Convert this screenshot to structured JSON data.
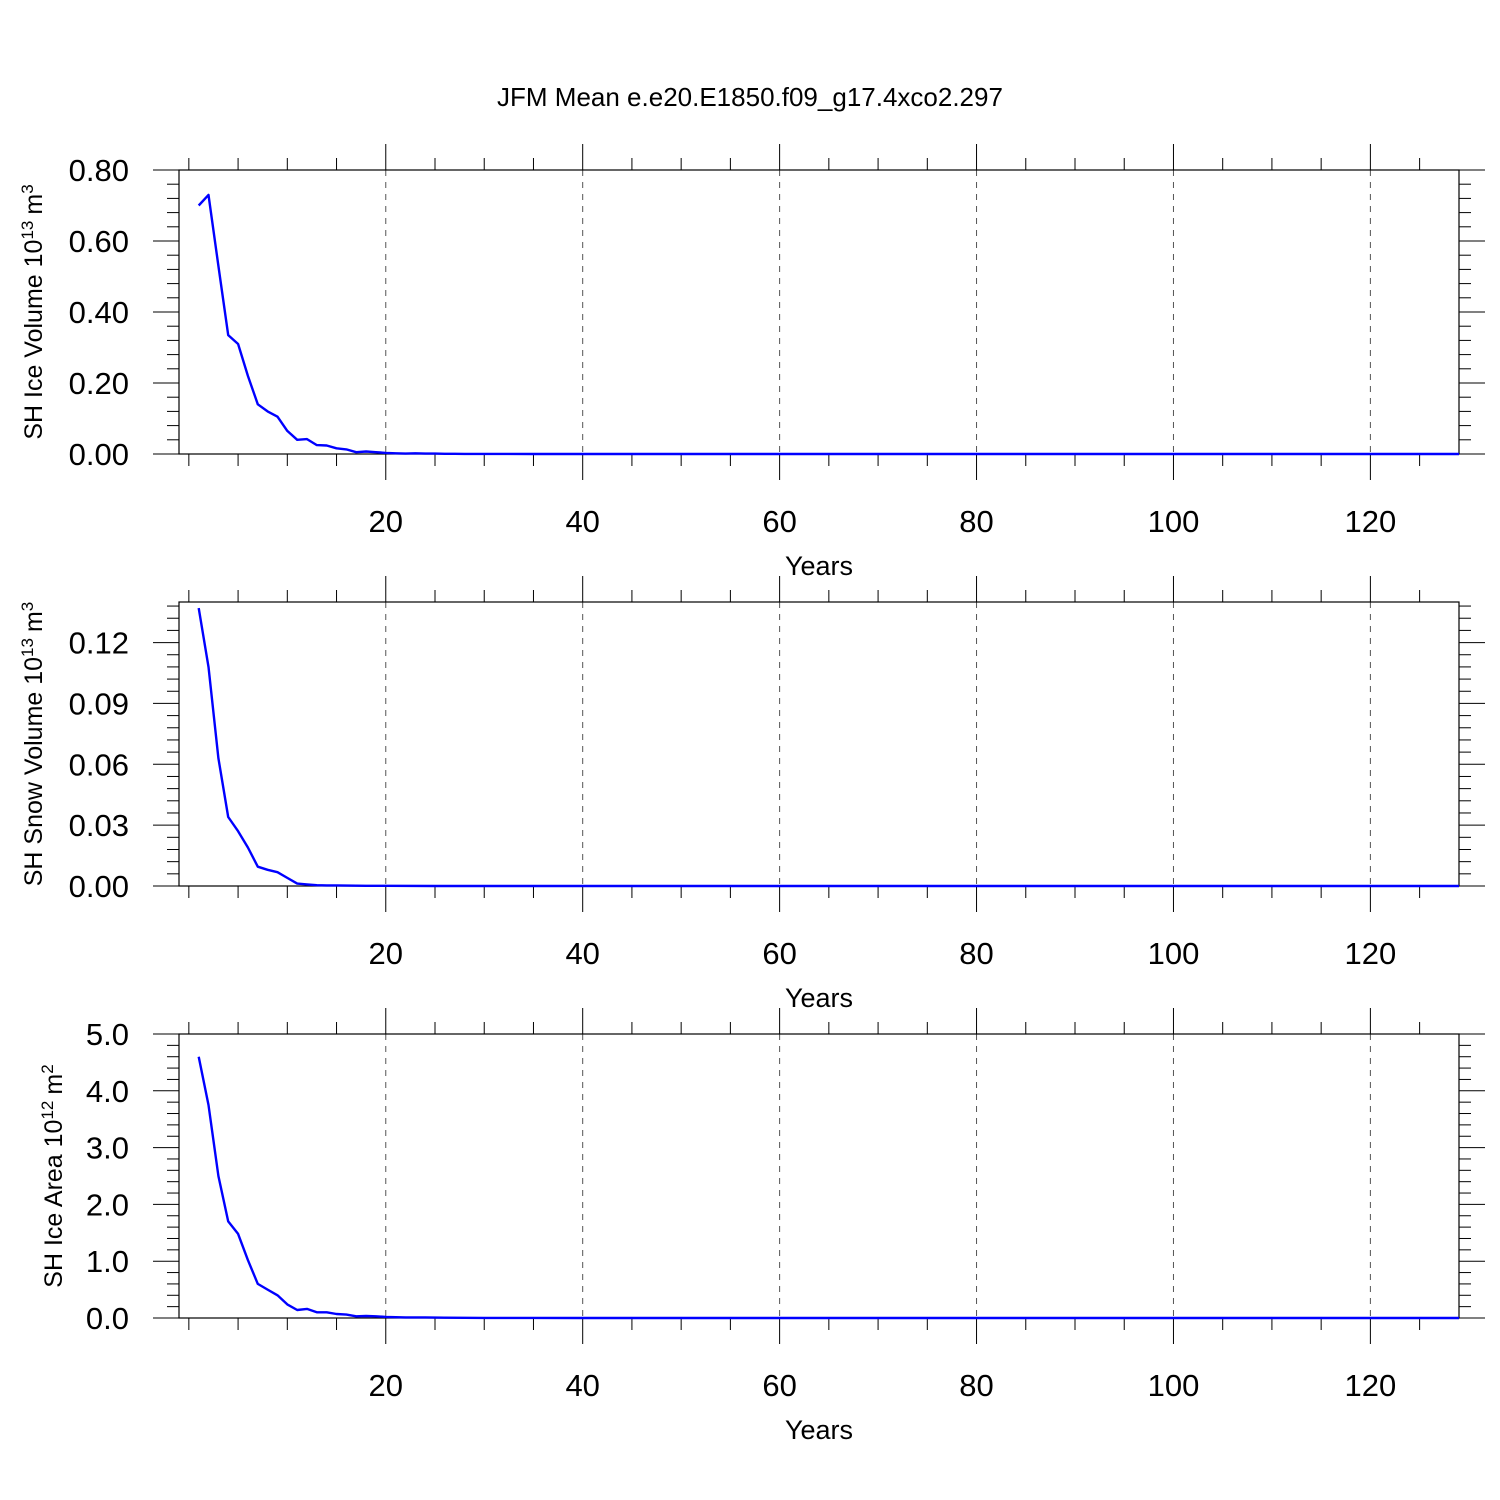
{
  "figure": {
    "title": "JFM Mean e.e20.E1850.f09_g17.4xco2.297"
  },
  "chart_data": [
    {
      "type": "line",
      "ylabel": "SH Ice Volume",
      "yunit": {
        "base": "10",
        "exp": "13",
        "unit": "m",
        "unit_exp": "3"
      },
      "xlabel": "Years",
      "xlim": [
        -1,
        129
      ],
      "ylim": [
        0,
        0.8
      ],
      "xticks": [
        20,
        40,
        60,
        80,
        100,
        120
      ],
      "xtick_labels": [
        "20",
        "40",
        "60",
        "80",
        "100",
        "120"
      ],
      "yticks": [
        0,
        0.2,
        0.4,
        0.6,
        0.8
      ],
      "ytick_labels": [
        "0.00",
        "0.20",
        "0.40",
        "0.60",
        "0.80"
      ],
      "grid": "vertical dashed",
      "series": [
        {
          "color": "#0000ff",
          "x": [
            1,
            2,
            3,
            4,
            5,
            6,
            7,
            8,
            9,
            10,
            11,
            12,
            13,
            14,
            15,
            16,
            17,
            18,
            19,
            20,
            21,
            22,
            23,
            24,
            25,
            26,
            27,
            28,
            30,
            35,
            40,
            50,
            60,
            80,
            100,
            120,
            129
          ],
          "y": [
            0.7,
            0.73,
            0.53,
            0.335,
            0.31,
            0.22,
            0.14,
            0.12,
            0.105,
            0.065,
            0.04,
            0.042,
            0.025,
            0.024,
            0.016,
            0.013,
            0.005,
            0.007,
            0.005,
            0.003,
            0.002,
            0.001,
            0.002,
            0.001,
            0.001,
            0.0005,
            0.0005,
            0.0003,
            0.0002,
            0.0001,
            0,
            0,
            0,
            0,
            0,
            0,
            0
          ]
        }
      ]
    },
    {
      "type": "line",
      "ylabel": "SH Snow Volume",
      "yunit": {
        "base": "10",
        "exp": "13",
        "unit": "m",
        "unit_exp": "3"
      },
      "xlabel": "Years",
      "xlim": [
        -1,
        129
      ],
      "ylim": [
        0,
        0.14
      ],
      "xticks": [
        20,
        40,
        60,
        80,
        100,
        120
      ],
      "xtick_labels": [
        "20",
        "40",
        "60",
        "80",
        "100",
        "120"
      ],
      "yticks": [
        0,
        0.03,
        0.06,
        0.09,
        0.12
      ],
      "ytick_labels": [
        "0.00",
        "0.03",
        "0.06",
        "0.09",
        "0.12"
      ],
      "grid": "vertical dashed",
      "series": [
        {
          "color": "#0000ff",
          "x": [
            1,
            2,
            3,
            4,
            5,
            6,
            7,
            8,
            9,
            10,
            11,
            12,
            13,
            14,
            15,
            16,
            18,
            20,
            25,
            30,
            40,
            60,
            80,
            100,
            120,
            129
          ],
          "y": [
            0.137,
            0.108,
            0.063,
            0.034,
            0.027,
            0.019,
            0.0095,
            0.008,
            0.0068,
            0.004,
            0.0012,
            0.0008,
            0.0004,
            0.0003,
            0.0003,
            0.0002,
            0.0001,
            0.0001,
            0,
            0,
            0,
            0,
            0,
            0,
            0,
            0
          ]
        }
      ]
    },
    {
      "type": "line",
      "ylabel": "SH Ice Area",
      "yunit": {
        "base": "10",
        "exp": "12",
        "unit": "m",
        "unit_exp": "2"
      },
      "xlabel": "Years",
      "xlim": [
        -1,
        129
      ],
      "ylim": [
        0,
        5.0
      ],
      "xticks": [
        20,
        40,
        60,
        80,
        100,
        120
      ],
      "xtick_labels": [
        "20",
        "40",
        "60",
        "80",
        "100",
        "120"
      ],
      "yticks": [
        0,
        1,
        2,
        3,
        4,
        5
      ],
      "ytick_labels": [
        "0.0",
        "1.0",
        "2.0",
        "3.0",
        "4.0",
        "5.0"
      ],
      "grid": "vertical dashed",
      "series": [
        {
          "color": "#0000ff",
          "x": [
            1,
            2,
            3,
            4,
            5,
            6,
            7,
            8,
            9,
            10,
            11,
            12,
            13,
            14,
            15,
            16,
            17,
            18,
            19,
            20,
            22,
            24,
            26,
            28,
            30,
            35,
            40,
            50,
            60,
            80,
            100,
            120,
            129
          ],
          "y": [
            4.6,
            3.75,
            2.5,
            1.7,
            1.48,
            1.02,
            0.6,
            0.5,
            0.4,
            0.24,
            0.14,
            0.16,
            0.1,
            0.1,
            0.07,
            0.06,
            0.03,
            0.035,
            0.03,
            0.02,
            0.01,
            0.01,
            0.005,
            0.003,
            0.002,
            0.001,
            0,
            0,
            0,
            0,
            0,
            0,
            0
          ]
        }
      ]
    }
  ]
}
